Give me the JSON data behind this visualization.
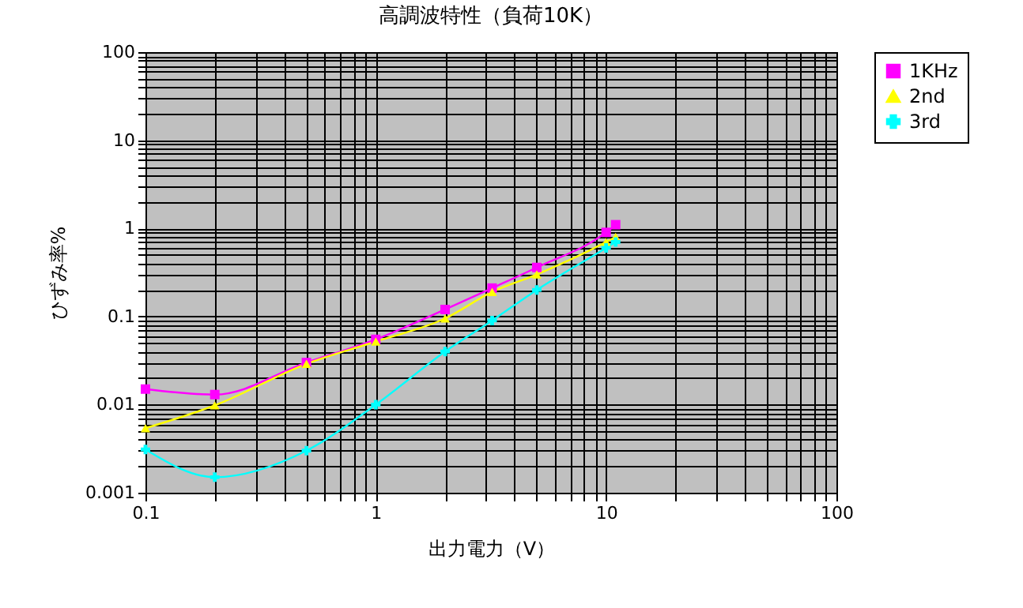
{
  "chart_data": {
    "type": "line",
    "title": "高調波特性（負荷10K）",
    "xlabel": "出力電力（V）",
    "ylabel": "ひずみ率%",
    "log": "xy",
    "grid": true,
    "legend": "right",
    "line_style": "solid",
    "xlim": [
      0.1,
      100
    ],
    "ylim": [
      0.001,
      100
    ],
    "xticks": [
      0.1,
      {
        "value": 0.2,
        "label": null
      },
      {
        "value": 0.3,
        "label": null
      },
      {
        "value": 0.4,
        "label": null
      },
      {
        "value": 0.5,
        "label": null
      },
      {
        "value": 0.6,
        "label": null
      },
      {
        "value": 0.7,
        "label": null
      },
      {
        "value": 0.8,
        "label": null
      },
      {
        "value": 0.9,
        "label": null
      },
      1,
      {
        "value": 2,
        "label": null
      },
      {
        "value": 3,
        "label": null
      },
      {
        "value": 4,
        "label": null
      },
      {
        "value": 5,
        "label": null
      },
      {
        "value": 6,
        "label": null
      },
      {
        "value": 7,
        "label": null
      },
      {
        "value": 8,
        "label": null
      },
      {
        "value": 9,
        "label": null
      },
      10,
      {
        "value": 20,
        "label": null
      },
      {
        "value": 30,
        "label": null
      },
      {
        "value": 40,
        "label": null
      },
      {
        "value": 50,
        "label": null
      },
      {
        "value": 60,
        "label": null
      },
      {
        "value": 70,
        "label": null
      },
      {
        "value": 80,
        "label": null
      },
      {
        "value": 90,
        "label": null
      },
      100
    ],
    "yticks": [
      0.001,
      {
        "value": 0.002,
        "label": null
      },
      {
        "value": 0.003,
        "label": null
      },
      {
        "value": 0.004,
        "label": null
      },
      {
        "value": 0.005,
        "label": null
      },
      {
        "value": 0.006,
        "label": null
      },
      {
        "value": 0.007,
        "label": null
      },
      {
        "value": 0.008,
        "label": null
      },
      {
        "value": 0.009,
        "label": null
      },
      0.01,
      {
        "value": 0.02,
        "label": null
      },
      {
        "value": 0.03,
        "label": null
      },
      {
        "value": 0.04,
        "label": null
      },
      {
        "value": 0.05,
        "label": null
      },
      {
        "value": 0.06,
        "label": null
      },
      {
        "value": 0.07,
        "label": null
      },
      {
        "value": 0.08,
        "label": null
      },
      {
        "value": 0.09,
        "label": null
      },
      0.1,
      {
        "value": 0.2,
        "label": null
      },
      {
        "value": 0.3,
        "label": null
      },
      {
        "value": 0.4,
        "label": null
      },
      {
        "value": 0.5,
        "label": null
      },
      {
        "value": 0.6,
        "label": null
      },
      {
        "value": 0.7,
        "label": null
      },
      {
        "value": 0.8,
        "label": null
      },
      {
        "value": 0.9,
        "label": null
      },
      1,
      {
        "value": 2,
        "label": null
      },
      {
        "value": 3,
        "label": null
      },
      {
        "value": 4,
        "label": null
      },
      {
        "value": 5,
        "label": null
      },
      {
        "value": 6,
        "label": null
      },
      {
        "value": 7,
        "label": null
      },
      {
        "value": 8,
        "label": null
      },
      {
        "value": 9,
        "label": null
      },
      10,
      {
        "value": 20,
        "label": null
      },
      {
        "value": 30,
        "label": null
      },
      {
        "value": 40,
        "label": null
      },
      {
        "value": 50,
        "label": null
      },
      {
        "value": 60,
        "label": null
      },
      {
        "value": 70,
        "label": null
      },
      {
        "value": 80,
        "label": null
      },
      {
        "value": 90,
        "label": null
      },
      100
    ],
    "x": [
      0.1,
      0.2,
      0.5,
      1,
      2,
      3.2,
      5,
      10,
      11
    ],
    "series": [
      {
        "name": "1KHz",
        "color": "#ff00ff",
        "marker": "square",
        "values": [
          0.015,
          0.013,
          0.03,
          0.055,
          0.12,
          0.21,
          0.36,
          0.9,
          1.1
        ]
      },
      {
        "name": "2nd",
        "color": "#ffff00",
        "marker": "triangle",
        "values": [
          0.0054,
          0.0098,
          0.029,
          0.052,
          0.095,
          0.19,
          0.3,
          0.7,
          0.8
        ]
      },
      {
        "name": "3rd",
        "color": "#00ffff",
        "marker": "cross",
        "values": [
          0.0031,
          0.0015,
          0.003,
          0.01,
          0.04,
          0.09,
          0.2,
          0.6,
          0.7
        ]
      }
    ]
  }
}
